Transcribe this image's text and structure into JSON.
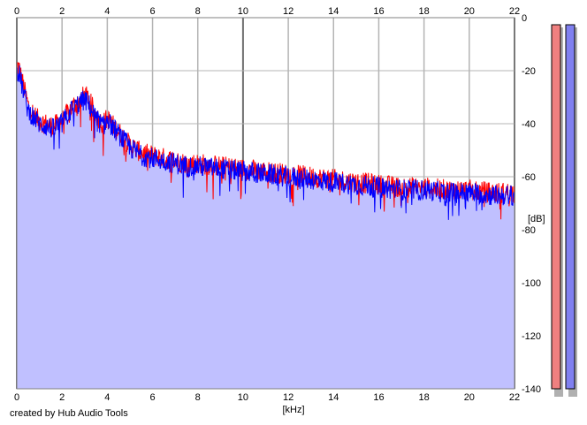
{
  "chart_data": {
    "type": "area",
    "xlabel": "[kHz]",
    "ylabel": "[dB]",
    "xlim": [
      0,
      22
    ],
    "ylim": [
      -140,
      0
    ],
    "x_ticks": [
      "0",
      "2",
      "4",
      "6",
      "8",
      "10",
      "12",
      "14",
      "16",
      "18",
      "20",
      "22"
    ],
    "y_ticks": [
      "0",
      "-20",
      "-40",
      "-60",
      "-80",
      "-100",
      "-120",
      "-140"
    ],
    "grid": true,
    "series": [
      {
        "color": "#ff0000",
        "x": [
          0,
          0.1,
          0.3,
          0.5,
          0.8,
          1.0,
          1.3,
          1.6,
          2.0,
          2.4,
          2.8,
          3.0,
          3.2,
          3.5,
          3.8,
          4.0,
          4.3,
          4.6,
          5.0,
          5.5,
          6.0,
          6.5,
          7.0,
          7.5,
          8.0,
          9.0,
          10.0,
          11.0,
          12.0,
          13.0,
          14.0,
          15.0,
          16.0,
          17.0,
          18.0,
          19.0,
          20.0,
          21.0,
          22.0
        ],
        "y": [
          -18,
          -19,
          -26,
          -33,
          -37,
          -39,
          -40,
          -41,
          -39,
          -34,
          -31,
          -29,
          -31,
          -37,
          -40,
          -38,
          -41,
          -44,
          -48,
          -51,
          -52,
          -53,
          -54,
          -55,
          -55,
          -56,
          -57,
          -58,
          -59,
          -60,
          -61,
          -62,
          -63,
          -64,
          -64,
          -65,
          -65,
          -66,
          -66
        ]
      },
      {
        "color": "#0000ff",
        "x": [
          0,
          0.1,
          0.3,
          0.5,
          0.8,
          1.0,
          1.3,
          1.6,
          2.0,
          2.4,
          2.8,
          3.0,
          3.2,
          3.5,
          3.8,
          4.0,
          4.3,
          4.6,
          5.0,
          5.5,
          6.0,
          6.5,
          7.0,
          7.5,
          8.0,
          9.0,
          10.0,
          11.0,
          12.0,
          13.0,
          14.0,
          15.0,
          16.0,
          17.0,
          18.0,
          19.0,
          20.0,
          21.0,
          22.0
        ],
        "y": [
          -20,
          -21,
          -28,
          -35,
          -38,
          -40,
          -41,
          -42,
          -40,
          -35,
          -32,
          -31,
          -33,
          -38,
          -41,
          -39,
          -42,
          -45,
          -49,
          -52,
          -53,
          -54,
          -55,
          -56,
          -56,
          -57,
          -58,
          -59,
          -60,
          -61,
          -62,
          -63,
          -64,
          -65,
          -65,
          -66,
          -66,
          -67,
          -67
        ]
      }
    ]
  },
  "meter": {
    "left_color": "#f08080",
    "right_color": "#8080f0",
    "left_level": 1.0,
    "right_level": 1.0
  },
  "fill_color": "#c0c0ff",
  "credit": "created by Hub Audio Tools"
}
